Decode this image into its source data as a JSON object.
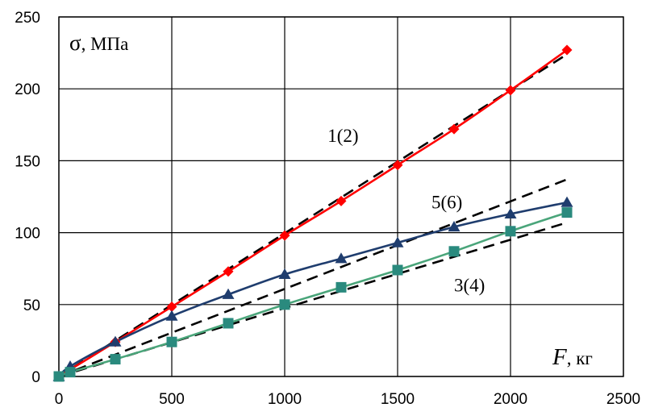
{
  "chart_data": {
    "type": "line",
    "xlim": [
      0,
      2500
    ],
    "ylim": [
      0,
      250
    ],
    "x_ticks": [
      0,
      500,
      1000,
      1500,
      2000,
      2500
    ],
    "y_ticks": [
      0,
      50,
      100,
      150,
      200,
      250
    ],
    "grid": true,
    "ylabel": {
      "symbol": "σ",
      "unit": ", МПа"
    },
    "xlabel": {
      "symbol": "F",
      "unit": ", кг"
    },
    "curve_labels": [
      {
        "text": "1(2)",
        "x": 1190,
        "y": 163
      },
      {
        "text": "5(6)",
        "x": 1650,
        "y": 117
      },
      {
        "text": "3(4)",
        "x": 1750,
        "y": 59
      }
    ],
    "series": [
      {
        "color": "#ff0000",
        "marker": "diamond",
        "marker_color": "#ff0000",
        "x": [
          0,
          250,
          500,
          750,
          1000,
          1250,
          1500,
          1750,
          2000,
          2250
        ],
        "y": [
          0,
          24,
          48.5,
          73,
          98,
          122,
          147,
          172,
          199,
          227
        ]
      },
      {
        "color": "#1f3d6e",
        "marker": "triangle",
        "marker_color": "#1f3d6e",
        "x": [
          0,
          50,
          250,
          500,
          750,
          1000,
          1250,
          1500,
          1750,
          2000,
          2250
        ],
        "y": [
          0,
          7,
          24,
          42,
          57,
          71,
          82,
          93,
          104,
          113,
          121
        ]
      },
      {
        "color": "#4aa57a",
        "marker": "square",
        "marker_color": "#2a8a7e",
        "x": [
          0,
          50,
          250,
          500,
          750,
          1000,
          1250,
          1500,
          1750,
          2000,
          2250
        ],
        "y": [
          0,
          3,
          12,
          24,
          37,
          50,
          62,
          74,
          87,
          101,
          114
        ]
      }
    ],
    "reference_lines": [
      {
        "color": "#000000",
        "style": "dashed",
        "x": [
          0,
          2250
        ],
        "y": [
          0,
          224
        ]
      },
      {
        "color": "#000000",
        "style": "dashed",
        "x": [
          0,
          2250
        ],
        "y": [
          0,
          137
        ]
      },
      {
        "color": "#000000",
        "style": "dashed",
        "x": [
          0,
          2250
        ],
        "y": [
          0,
          107
        ]
      }
    ]
  }
}
